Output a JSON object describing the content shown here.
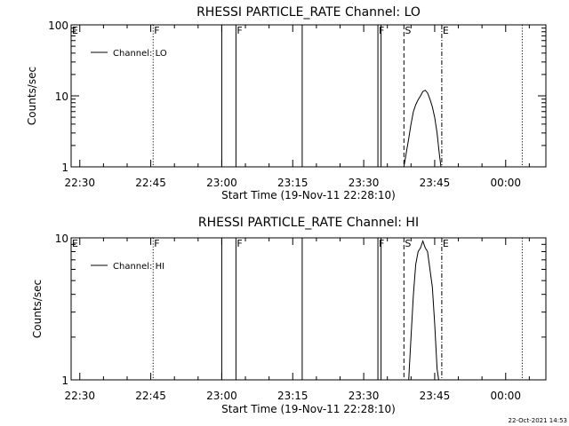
{
  "stamp": "22-Oct-2021 14:53",
  "chart_data": [
    {
      "type": "line",
      "title": "RHESSI PARTICLE_RATE Channel: LO",
      "xlabel": "Start Time (19-Nov-11 22:28:10)",
      "ylabel": "Counts/sec",
      "yscale": "log",
      "ylim": [
        1,
        100
      ],
      "yticks": [
        {
          "v": 1,
          "label": "1"
        },
        {
          "v": 10,
          "label": "10"
        },
        {
          "v": 100,
          "label": "100"
        }
      ],
      "xlim": [
        "22:28:10",
        "00:08:30"
      ],
      "xticks": [
        "22:30",
        "22:45",
        "23:00",
        "23:15",
        "23:30",
        "23:45",
        "00:00"
      ],
      "legend": {
        "label": "Channel: LO",
        "placement": "top-left"
      },
      "flags": [
        {
          "t": "22:28:10",
          "label": "E",
          "style": "none"
        },
        {
          "t": "22:45:30",
          "label": "F",
          "style": "dotted"
        },
        {
          "t": "23:00:00",
          "label": "",
          "style": "solid"
        },
        {
          "t": "23:03:00",
          "label": "F",
          "style": "solid"
        },
        {
          "t": "23:17:00",
          "label": "",
          "style": "solid"
        },
        {
          "t": "23:33:00",
          "label": "F",
          "style": "solid"
        },
        {
          "t": "23:33:40",
          "label": "",
          "style": "solid"
        },
        {
          "t": "23:38:30",
          "label": "S",
          "style": "dashed"
        },
        {
          "t": "23:46:30",
          "label": "E",
          "style": "dashdot"
        },
        {
          "t": "00:03:30",
          "label": "",
          "style": "dotted"
        }
      ],
      "series": [
        {
          "points": [
            [
              "23:38:30",
              1.0
            ],
            [
              "23:39:30",
              2.5
            ],
            [
              "23:40:00",
              4.0
            ],
            [
              "23:40:30",
              6.0
            ],
            [
              "23:41:00",
              7.5
            ],
            [
              "23:41:30",
              8.8
            ],
            [
              "23:42:00",
              10.0
            ],
            [
              "23:42:30",
              11.5
            ],
            [
              "23:43:00",
              12.0
            ],
            [
              "23:43:30",
              11.0
            ],
            [
              "23:44:00",
              9.0
            ],
            [
              "23:44:30",
              7.0
            ],
            [
              "23:45:00",
              5.0
            ],
            [
              "23:45:30",
              3.0
            ],
            [
              "23:46:00",
              1.5
            ],
            [
              "23:46:20",
              1.0
            ]
          ]
        }
      ]
    },
    {
      "type": "line",
      "title": "RHESSI PARTICLE_RATE Channel: HI",
      "xlabel": "Start Time (19-Nov-11 22:28:10)",
      "ylabel": "Counts/sec",
      "yscale": "log",
      "ylim": [
        1,
        10
      ],
      "yticks": [
        {
          "v": 1,
          "label": "1"
        },
        {
          "v": 10,
          "label": "10"
        }
      ],
      "xlim": [
        "22:28:10",
        "00:08:30"
      ],
      "xticks": [
        "22:30",
        "22:45",
        "23:00",
        "23:15",
        "23:30",
        "23:45",
        "00:00"
      ],
      "legend": {
        "label": "Channel: HI",
        "placement": "top-left"
      },
      "flags": [
        {
          "t": "22:28:10",
          "label": "E",
          "style": "none"
        },
        {
          "t": "22:45:30",
          "label": "F",
          "style": "dotted"
        },
        {
          "t": "23:00:00",
          "label": "",
          "style": "solid"
        },
        {
          "t": "23:03:00",
          "label": "F",
          "style": "solid"
        },
        {
          "t": "23:17:00",
          "label": "",
          "style": "solid"
        },
        {
          "t": "23:33:00",
          "label": "F",
          "style": "solid"
        },
        {
          "t": "23:33:40",
          "label": "",
          "style": "solid"
        },
        {
          "t": "23:38:30",
          "label": "S",
          "style": "dashed"
        },
        {
          "t": "23:46:30",
          "label": "E",
          "style": "dashdot"
        },
        {
          "t": "00:03:30",
          "label": "",
          "style": "dotted"
        }
      ],
      "series": [
        {
          "points": [
            [
              "23:39:30",
              1.0
            ],
            [
              "23:40:00",
              2.0
            ],
            [
              "23:40:30",
              4.0
            ],
            [
              "23:41:00",
              6.5
            ],
            [
              "23:41:30",
              8.0
            ],
            [
              "23:42:00",
              8.5
            ],
            [
              "23:42:30",
              9.5
            ],
            [
              "23:43:00",
              8.5
            ],
            [
              "23:43:30",
              8.0
            ],
            [
              "23:44:00",
              6.0
            ],
            [
              "23:44:30",
              4.5
            ],
            [
              "23:45:00",
              2.5
            ],
            [
              "23:45:30",
              1.2
            ],
            [
              "23:45:50",
              1.0
            ]
          ]
        }
      ]
    }
  ]
}
